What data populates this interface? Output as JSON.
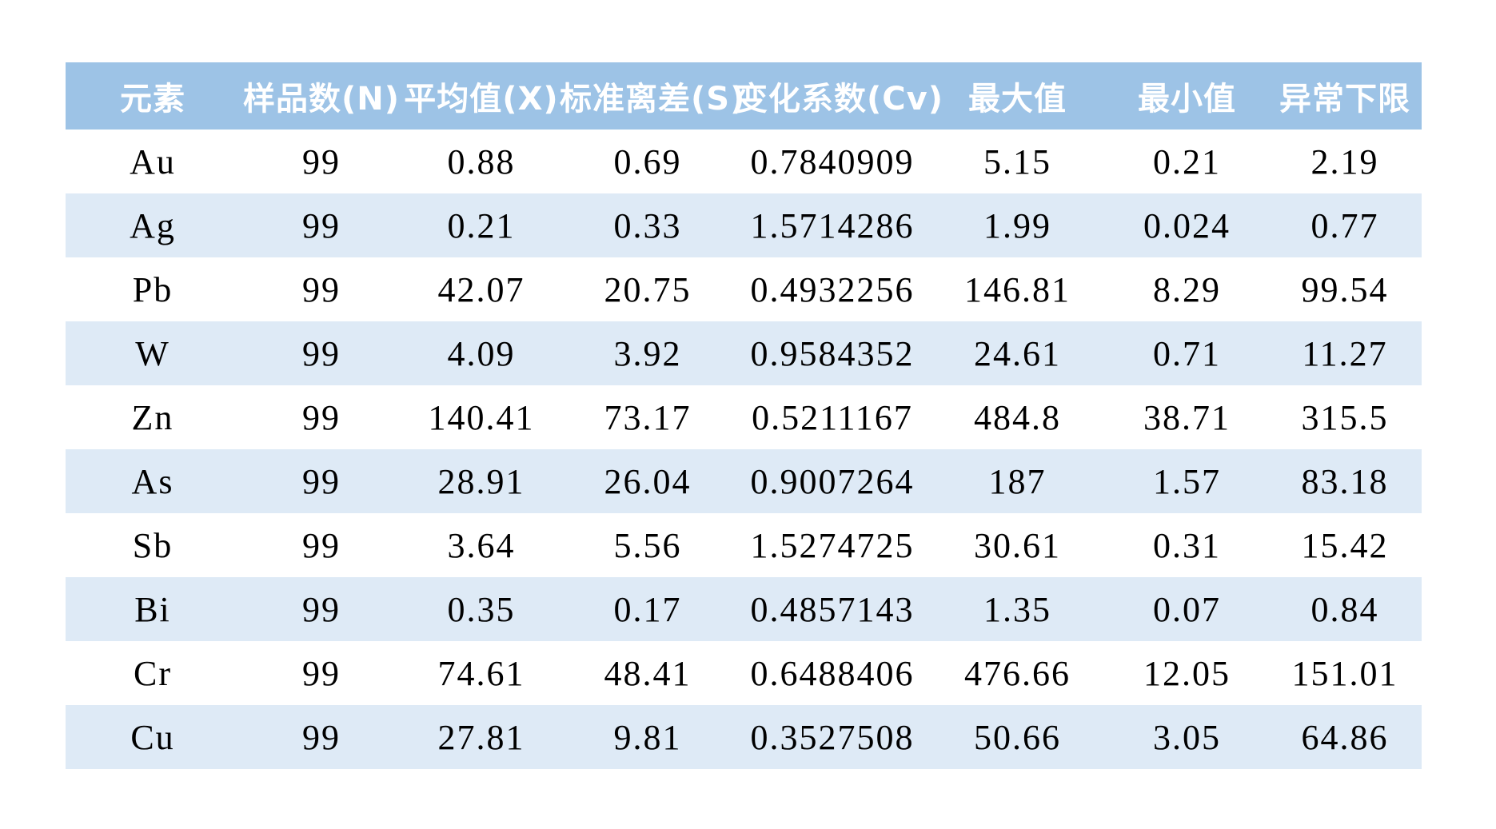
{
  "table": {
    "columns": [
      "元素",
      "样品数(N)",
      "平均值(X)",
      "标准离差(S)",
      "变化系数(Cv)",
      "最大值",
      "最小值",
      "异常下限"
    ],
    "column_ids": [
      "element",
      "sample-count",
      "mean",
      "std-dev",
      "cv",
      "max",
      "min",
      "anomaly-lower-limit"
    ],
    "rows": [
      [
        "Au",
        "99",
        "0.88",
        "0.69",
        "0.7840909",
        "5.15",
        "0.21",
        "2.19"
      ],
      [
        "Ag",
        "99",
        "0.21",
        "0.33",
        "1.5714286",
        "1.99",
        "0.024",
        "0.77"
      ],
      [
        "Pb",
        "99",
        "42.07",
        "20.75",
        "0.4932256",
        "146.81",
        "8.29",
        "99.54"
      ],
      [
        "W",
        "99",
        "4.09",
        "3.92",
        "0.9584352",
        "24.61",
        "0.71",
        "11.27"
      ],
      [
        "Zn",
        "99",
        "140.41",
        "73.17",
        "0.5211167",
        "484.8",
        "38.71",
        "315.5"
      ],
      [
        "As",
        "99",
        "28.91",
        "26.04",
        "0.9007264",
        "187",
        "1.57",
        "83.18"
      ],
      [
        "Sb",
        "99",
        "3.64",
        "5.56",
        "1.5274725",
        "30.61",
        "0.31",
        "15.42"
      ],
      [
        "Bi",
        "99",
        "0.35",
        "0.17",
        "0.4857143",
        "1.35",
        "0.07",
        "0.84"
      ],
      [
        "Cr",
        "99",
        "74.61",
        "48.41",
        "0.6488406",
        "476.66",
        "12.05",
        "151.01"
      ],
      [
        "Cu",
        "99",
        "27.81",
        "9.81",
        "0.3527508",
        "50.66",
        "3.05",
        "64.86"
      ]
    ]
  },
  "colors": {
    "header_bg": "#9DC3E6",
    "stripe_bg": "#DEEAF6",
    "header_text": "#FFFFFF",
    "body_text": "#000000",
    "page_bg": "#FFFFFF"
  }
}
